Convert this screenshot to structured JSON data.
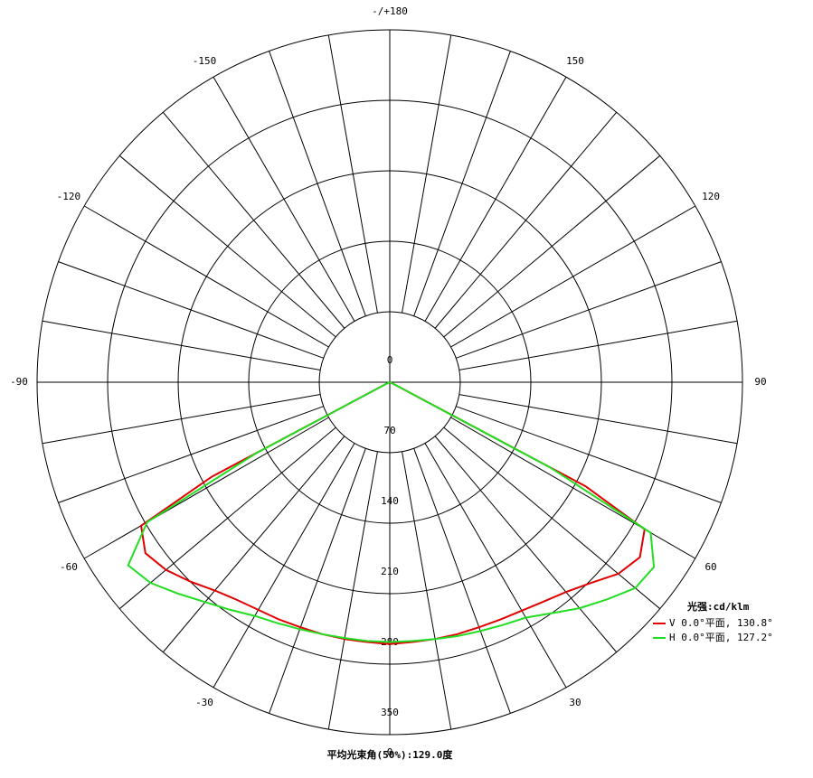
{
  "chart_data": {
    "type": "polar-line",
    "rlim": [
      0,
      350
    ],
    "rticks": [
      0,
      70,
      140,
      210,
      280,
      350
    ],
    "thetaticks": [
      -150,
      -120,
      -90,
      -60,
      -30,
      0,
      30,
      60,
      90,
      120,
      150,
      {
        "value": 180,
        "label": "-/+180"
      }
    ],
    "legend_title": "光强:cd/klm",
    "caption": "平均光束角(50%):129.0度",
    "x": [
      -90,
      -80,
      -70,
      -65,
      -62,
      -60,
      -55,
      -50,
      -45,
      -40,
      -35,
      -30,
      -25,
      -20,
      -15,
      -10,
      -5,
      0,
      5,
      10,
      15,
      20,
      25,
      30,
      35,
      40,
      45,
      50,
      55,
      60,
      62,
      65,
      70,
      80,
      90
    ],
    "series": [
      {
        "name": "V 0.0°平面, 130.8°",
        "color": "#e00000",
        "values": [
          0,
          0,
          0,
          5,
          200,
          285,
          296,
          290,
          280,
          270,
          264,
          261,
          260,
          259,
          259,
          259,
          259,
          260,
          259,
          259,
          259,
          259,
          260,
          262,
          266,
          272,
          282,
          296,
          303,
          292,
          220,
          5,
          0,
          0,
          0
        ]
      },
      {
        "name": "H 0.0°平面, 127.2°",
        "color": "#22dd22",
        "values": [
          0,
          0,
          0,
          5,
          150,
          278,
          317,
          310,
          297,
          285,
          276,
          268,
          264,
          261,
          259,
          258,
          258,
          258,
          258,
          259,
          261,
          263,
          266,
          270,
          280,
          293,
          305,
          318,
          320,
          299,
          180,
          5,
          0,
          0,
          0
        ]
      }
    ]
  }
}
